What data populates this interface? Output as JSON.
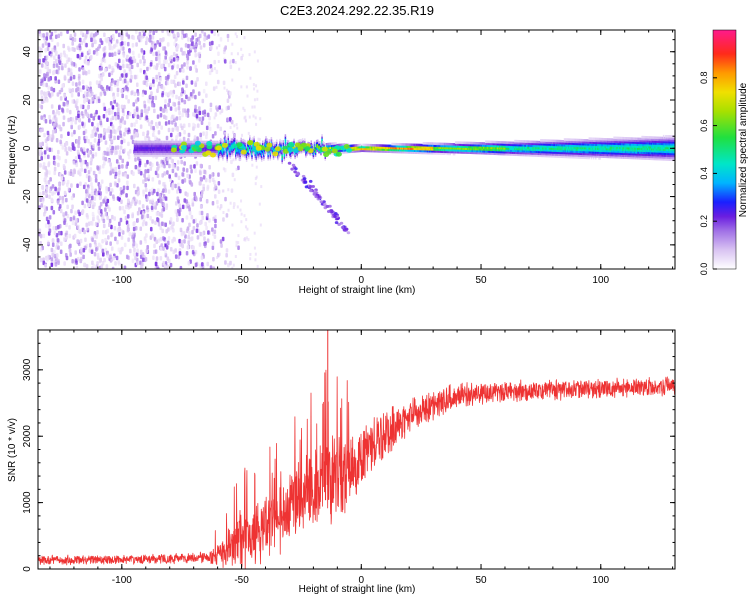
{
  "figure": {
    "title": "C2E3.2024.292.22.35.R19"
  },
  "colors": {
    "snr_line": "#ee3333",
    "colormap": [
      "#ffffff",
      "#d9c3f2",
      "#a070e6",
      "#6a1ee0",
      "#1a20ff",
      "#00b4ff",
      "#00e6c8",
      "#20e040",
      "#a8e000",
      "#f0e000",
      "#ff9a00",
      "#ff2a1a",
      "#ff1a8c"
    ]
  },
  "chart_data": [
    {
      "type": "heatmap",
      "title": "",
      "xlabel": "Height of straight line (km)",
      "ylabel": "Frequency (Hz)",
      "xlim": [
        -135,
        131
      ],
      "ylim": [
        -50,
        49
      ],
      "x_ticks": [
        -100,
        -50,
        0,
        50,
        100
      ],
      "y_ticks": [
        -40,
        -20,
        0,
        20,
        40
      ],
      "grid": false,
      "colorbar": {
        "label": "Normalized spectral amplitude",
        "range": [
          0,
          1
        ],
        "ticks": [
          0.0,
          0.2,
          0.4,
          0.6,
          0.8
        ]
      },
      "features": {
        "noise_region_x": [
          -135,
          -60
        ],
        "main_trace_frequency_hz": 0,
        "main_trace_peak_amplitude": 0.9,
        "main_trace_peak_x_range": [
          -5,
          30
        ],
        "secondary_diagonal_trace": {
          "x_start": -30,
          "y_start": -6,
          "x_end": -5,
          "y_end": -35
        },
        "trace_spread_hz": [
          [
            -60,
            3
          ],
          [
            -20,
            2
          ],
          [
            0,
            1
          ],
          [
            50,
            2
          ],
          [
            131,
            4
          ]
        ]
      }
    },
    {
      "type": "line",
      "title": "",
      "xlabel": "Height of straight line (km)",
      "ylabel": "SNR (10 * v/v)",
      "xlim": [
        -135,
        131
      ],
      "ylim": [
        0,
        3600
      ],
      "x_ticks": [
        -100,
        -50,
        0,
        50,
        100
      ],
      "y_ticks": [
        0,
        1000,
        2000,
        3000
      ],
      "grid": false,
      "series": [
        {
          "name": "",
          "envelope": {
            "x": [
              -135,
              -100,
              -70,
              -62,
              -55,
              -50,
              -45,
              -40,
              -35,
              -30,
              -25,
              -20,
              -15,
              -10,
              -5,
              0,
              5,
              10,
              20,
              30,
              40,
              50,
              60,
              80,
              100,
              120,
              131
            ],
            "mean": [
              130,
              140,
              160,
              200,
              350,
              450,
              500,
              600,
              700,
              900,
              1050,
              1200,
              1300,
              1400,
              1500,
              1650,
              1850,
              2050,
              2300,
              2450,
              2600,
              2650,
              2680,
              2700,
              2720,
              2740,
              2750
            ],
            "spread": [
              80,
              80,
              90,
              150,
              350,
              500,
              500,
              550,
              550,
              600,
              650,
              700,
              800,
              700,
              650,
              500,
              450,
              400,
              300,
              260,
              230,
              200,
              180,
              170,
              170,
              160,
              160
            ]
          },
          "peak": {
            "x": -14,
            "y": 3600
          }
        }
      ]
    }
  ]
}
